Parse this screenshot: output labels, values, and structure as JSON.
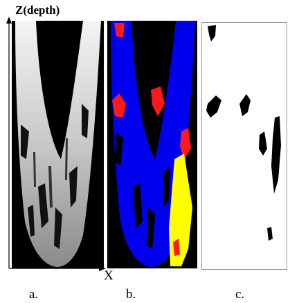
{
  "axis": {
    "z_label": "Z(depth)",
    "x_label": "X"
  },
  "panels": [
    {
      "label": "a."
    },
    {
      "label": "b."
    },
    {
      "label": "c."
    }
  ]
}
